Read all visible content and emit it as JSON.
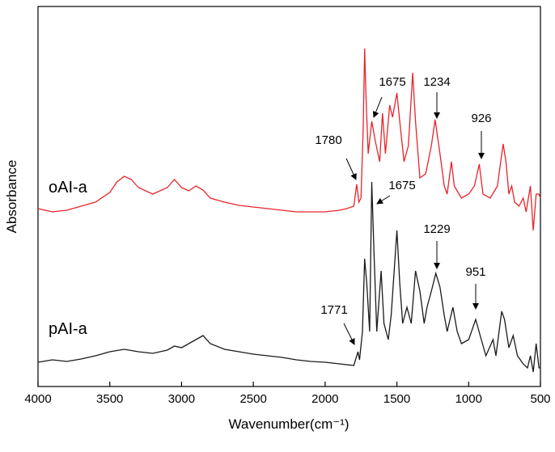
{
  "chart_data": {
    "type": "line",
    "xlabel": "Wavenumber(cm⁻¹)",
    "ylabel": "Absorbance",
    "xlim": [
      4000,
      500
    ],
    "xticks": [
      4000,
      3500,
      3000,
      2500,
      2000,
      1500,
      1000,
      500
    ],
    "ylim": [
      0,
      470
    ],
    "x": [
      4000,
      3900,
      3800,
      3700,
      3600,
      3500,
      3450,
      3400,
      3350,
      3300,
      3200,
      3100,
      3050,
      3000,
      2950,
      2900,
      2850,
      2800,
      2700,
      2600,
      2500,
      2400,
      2300,
      2200,
      2100,
      2000,
      1900,
      1850,
      1800,
      1780,
      1765,
      1750,
      1735,
      1725,
      1715,
      1700,
      1675,
      1650,
      1620,
      1600,
      1580,
      1550,
      1530,
      1500,
      1480,
      1450,
      1420,
      1390,
      1370,
      1340,
      1300,
      1260,
      1234,
      1200,
      1170,
      1150,
      1120,
      1100,
      1050,
      1000,
      960,
      926,
      900,
      850,
      800,
      760,
      740,
      720,
      700,
      680,
      650,
      620,
      600,
      570,
      550,
      530,
      510,
      500
    ],
    "series": [
      {
        "name": "oAI-a",
        "color": "#e8242a",
        "values": [
          220,
          216,
          218,
          223,
          228,
          240,
          253,
          260,
          256,
          246,
          238,
          246,
          256,
          246,
          242,
          248,
          243,
          233,
          228,
          224,
          222,
          220,
          218,
          216,
          216,
          216,
          218,
          220,
          223,
          250,
          228,
          233,
          318,
          418,
          358,
          288,
          328,
          303,
          278,
          338,
          288,
          348,
          333,
          363,
          328,
          278,
          298,
          388,
          328,
          258,
          263,
          298,
          330,
          288,
          248,
          238,
          278,
          248,
          233,
          238,
          248,
          275,
          238,
          233,
          248,
          300,
          278,
          238,
          248,
          228,
          223,
          233,
          216,
          248,
          193,
          238,
          238,
          233
        ]
      },
      {
        "name": "pAI-a",
        "color": "#1a1a1a",
        "x": [
          4000,
          3900,
          3800,
          3700,
          3600,
          3500,
          3400,
          3300,
          3200,
          3100,
          3050,
          3000,
          2950,
          2900,
          2850,
          2800,
          2700,
          2600,
          2500,
          2400,
          2300,
          2200,
          2100,
          2000,
          1900,
          1800,
          1771,
          1760,
          1740,
          1725,
          1710,
          1690,
          1675,
          1660,
          1640,
          1610,
          1590,
          1560,
          1540,
          1500,
          1480,
          1460,
          1430,
          1400,
          1370,
          1340,
          1310,
          1290,
          1260,
          1229,
          1200,
          1170,
          1150,
          1110,
          1080,
          1050,
          1000,
          951,
          920,
          880,
          830,
          810,
          770,
          750,
          720,
          690,
          660,
          620,
          590,
          570,
          550,
          530,
          510,
          500
        ],
        "values": [
          30,
          33,
          31,
          34,
          38,
          43,
          46,
          43,
          41,
          45,
          50,
          48,
          53,
          58,
          63,
          53,
          46,
          43,
          40,
          38,
          36,
          33,
          31,
          30,
          28,
          26,
          43,
          33,
          68,
          158,
          128,
          68,
          253,
          168,
          68,
          143,
          78,
          58,
          88,
          193,
          128,
          78,
          98,
          78,
          143,
          118,
          78,
          98,
          118,
          140,
          123,
          88,
          68,
          98,
          68,
          53,
          58,
          83,
          63,
          38,
          58,
          38,
          93,
          83,
          48,
          63,
          38,
          28,
          23,
          38,
          18,
          53,
          23,
          23
        ]
      }
    ],
    "annotations": [
      {
        "text": "1780",
        "x": 1780
      },
      {
        "text": "1675",
        "x": 1675
      },
      {
        "text": "1234",
        "x": 1234
      },
      {
        "text": "926",
        "x": 926
      },
      {
        "text": "1675",
        "x": 1675
      },
      {
        "text": "1229",
        "x": 1229
      },
      {
        "text": "951",
        "x": 951
      },
      {
        "text": "1771",
        "x": 1771
      }
    ]
  }
}
